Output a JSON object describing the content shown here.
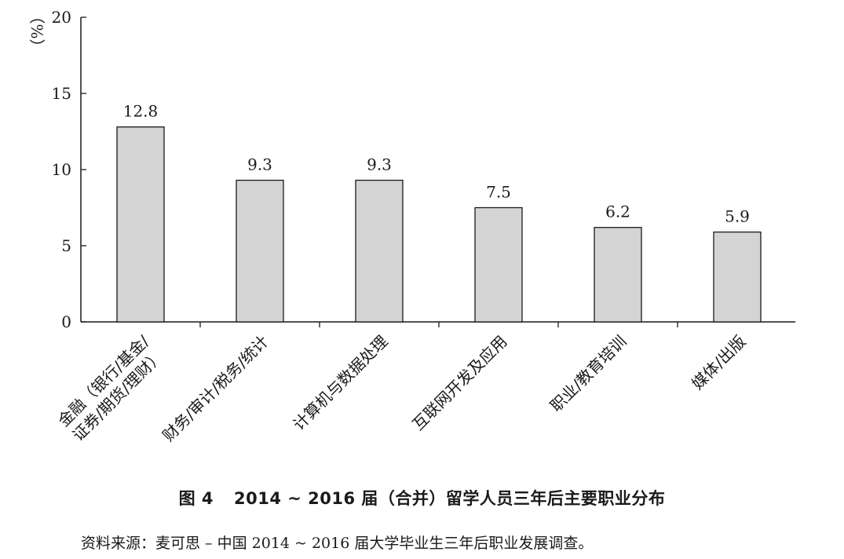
{
  "chart_data": {
    "type": "bar",
    "categories": [
      "金融（银行/基金/证券/期货/理财）",
      "财务/审计/税务/统计",
      "计算机与数据处理",
      "互联网开发及应用",
      "职业/教育培训",
      "媒体/出版"
    ],
    "category_lines": [
      [
        "金融（银行/基金/",
        "证券/期货/理财）"
      ],
      [
        "财务/审计/税务/统计"
      ],
      [
        "计算机与数据处理"
      ],
      [
        "互联网开发及应用"
      ],
      [
        "职业/教育培训"
      ],
      [
        "媒体/出版"
      ]
    ],
    "values": [
      12.8,
      9.3,
      9.3,
      7.5,
      6.2,
      5.9
    ],
    "value_labels": [
      "12.8",
      "9.3",
      "9.3",
      "7.5",
      "6.2",
      "5.9"
    ],
    "ylim": [
      0,
      20
    ],
    "yticks": [
      0,
      5,
      10,
      15,
      20
    ],
    "ylabel": "（%）",
    "bar_color": "#d4d4d4",
    "grid": false
  },
  "caption": {
    "number": "图 4",
    "text": "2014 ~ 2016 届（合并）留学人员三年后主要职业分布"
  },
  "source": "资料来源：麦可思 – 中国 2014 ~ 2016 届大学毕业生三年后职业发展调查。"
}
